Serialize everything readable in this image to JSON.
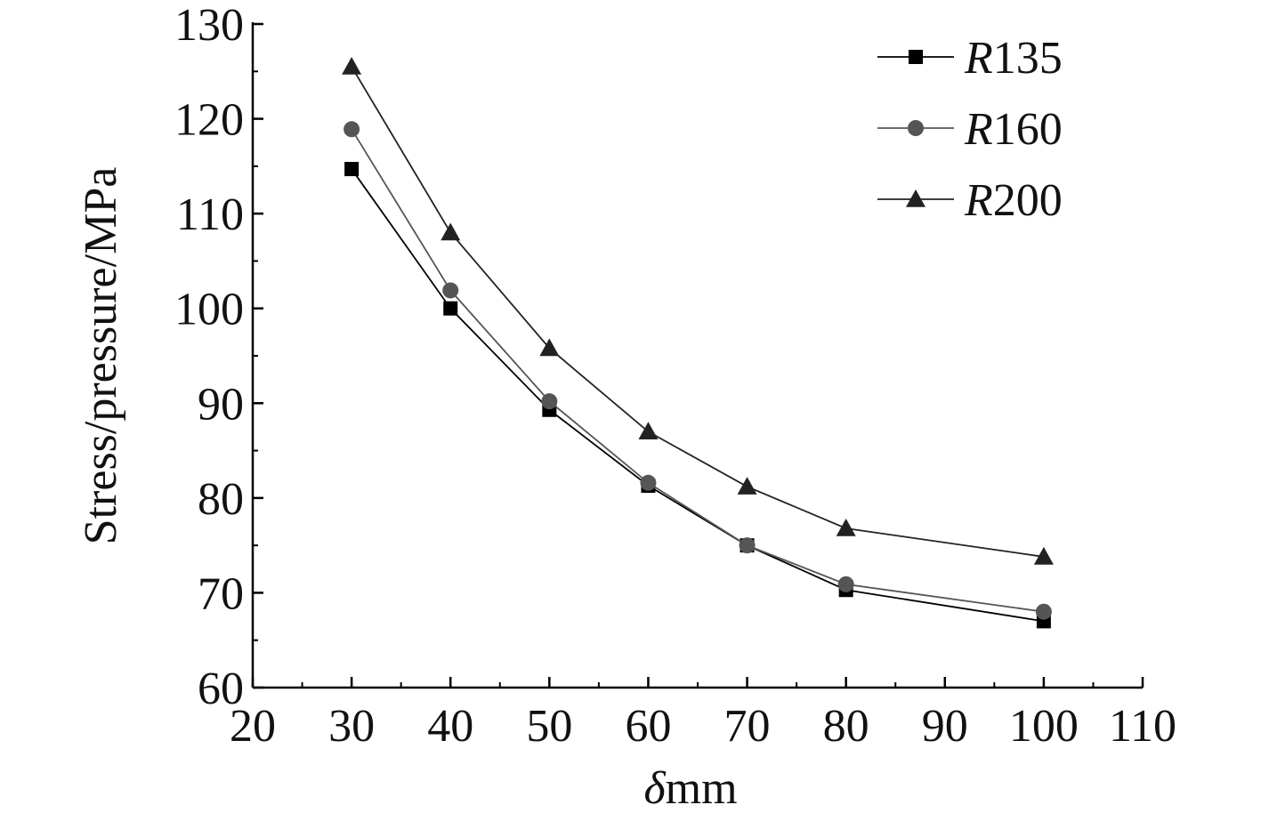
{
  "chart_data": {
    "type": "line",
    "title": "",
    "xlabel_symbol": "δ",
    "xlabel_unit": "mm",
    "ylabel": "Stress/pressure/MPa",
    "xlim": [
      20,
      110
    ],
    "ylim": [
      60,
      130
    ],
    "xticks": [
      20,
      30,
      40,
      50,
      60,
      70,
      80,
      90,
      100,
      110
    ],
    "yticks": [
      60,
      70,
      80,
      90,
      100,
      110,
      120,
      130
    ],
    "x": [
      30,
      40,
      50,
      60,
      70,
      80,
      100
    ],
    "legend_position": "top-right",
    "series": [
      {
        "name": "R135",
        "name_prefix": "R",
        "name_number": "135",
        "marker": "square",
        "color": "#000000",
        "values": [
          114.7,
          100.0,
          89.3,
          81.3,
          75.0,
          70.3,
          67.0
        ]
      },
      {
        "name": "R160",
        "name_prefix": "R",
        "name_number": "160",
        "marker": "circle",
        "color": "#555555",
        "values": [
          118.9,
          101.9,
          90.2,
          81.6,
          75.0,
          70.9,
          68.0
        ]
      },
      {
        "name": "R200",
        "name_prefix": "R",
        "name_number": "200",
        "marker": "triangle",
        "color": "#222222",
        "values": [
          125.5,
          108.0,
          95.8,
          87.0,
          81.2,
          76.8,
          73.8
        ]
      }
    ]
  }
}
